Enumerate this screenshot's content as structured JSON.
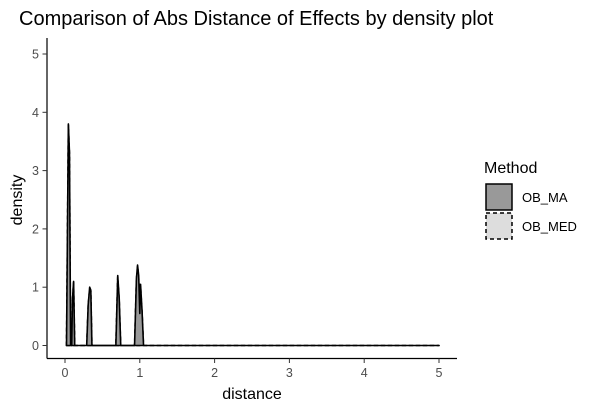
{
  "chart_data": {
    "type": "area",
    "title": "Comparison of Abs Distance of Effects by density plot",
    "xlabel": "distance",
    "ylabel": "density",
    "xlim": [
      0,
      5
    ],
    "ylim": [
      0,
      5
    ],
    "x_ticks": [
      "0",
      "1",
      "2",
      "3",
      "4",
      "5"
    ],
    "y_ticks": [
      "0",
      "1",
      "2",
      "3",
      "4",
      "5"
    ],
    "grid": false,
    "legend": {
      "title": "Method",
      "placement": "right",
      "entries": [
        "OB_MA",
        "OB_MED"
      ]
    },
    "series": [
      {
        "name": "OB_MA",
        "fill": "#999999",
        "line_style": "solid",
        "x": [
          0.02,
          0.045,
          0.06,
          0.075,
          0.09,
          0.1,
          0.115,
          0.13,
          0.29,
          0.31,
          0.33,
          0.345,
          0.36,
          0.68,
          0.705,
          0.725,
          0.745,
          0.93,
          0.955,
          0.97,
          0.985,
          1.0,
          1.01,
          1.03,
          1.05,
          5.0
        ],
        "values": [
          0,
          3.8,
          3.3,
          0,
          0,
          0.8,
          1.1,
          0,
          0,
          0.7,
          1.0,
          0.95,
          0,
          0,
          1.2,
          0.8,
          0,
          0,
          1.15,
          1.38,
          1.2,
          0.55,
          1.05,
          0.6,
          0,
          0
        ]
      },
      {
        "name": "OB_MED",
        "fill": "#dddddd",
        "line_style": "dashed",
        "x": [
          0.02,
          0.045,
          0.06,
          0.075,
          0.09,
          0.1,
          0.115,
          0.13,
          0.29,
          0.31,
          0.33,
          0.345,
          0.36,
          0.68,
          0.705,
          0.725,
          0.745,
          0.93,
          0.955,
          0.97,
          0.985,
          1.0,
          1.01,
          1.03,
          1.05,
          5.0
        ],
        "values": [
          0,
          3.78,
          3.28,
          0,
          0,
          0.78,
          1.08,
          0,
          0,
          0.68,
          0.98,
          0.93,
          0,
          0,
          1.18,
          0.78,
          0,
          0,
          1.13,
          1.36,
          1.18,
          0.53,
          1.02,
          0.58,
          0,
          0
        ]
      }
    ]
  }
}
